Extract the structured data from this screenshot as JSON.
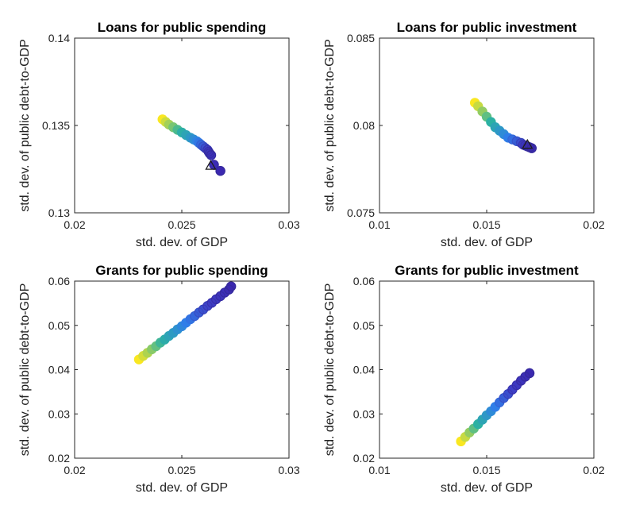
{
  "chart_data": [
    {
      "type": "scatter",
      "title": "Loans for public spending",
      "xlabel": "std. dev. of GDP",
      "ylabel": "std. dev. of public debt-to-GDP",
      "xlim": [
        0.02,
        0.03
      ],
      "ylim": [
        0.13,
        0.14
      ],
      "xticks": [
        "0.02",
        "0.025",
        "0.03"
      ],
      "yticks": [
        "0.13",
        "0.135",
        "0.14"
      ],
      "xtick_values": [
        0.02,
        0.025,
        0.03
      ],
      "ytick_values": [
        0.13,
        0.135,
        0.14
      ],
      "grid": false,
      "colormap": [
        "#f9e721",
        "#2cb1a3",
        "#2f7ee8",
        "#3e3fc6",
        "#3b28b0"
      ],
      "series": [
        {
          "marker": "circle",
          "x": [
            0.0241,
            0.02425,
            0.0244,
            0.0246,
            0.0248,
            0.025,
            0.0252,
            0.0254,
            0.02555,
            0.0257,
            0.0258,
            0.0259,
            0.026,
            0.0261,
            0.0262,
            0.02625,
            0.0263,
            0.02637,
            0.0265,
            0.0268
          ],
          "y": [
            0.13535,
            0.1352,
            0.13505,
            0.1349,
            0.13475,
            0.1346,
            0.13445,
            0.1343,
            0.1342,
            0.1341,
            0.134,
            0.1339,
            0.1338,
            0.1337,
            0.1336,
            0.1335,
            0.1334,
            0.1333,
            0.13275,
            0.1324
          ]
        },
        {
          "marker": "triangle",
          "x": [
            0.02635
          ],
          "y": [
            0.1327
          ]
        }
      ]
    },
    {
      "type": "scatter",
      "title": "Loans for public investment",
      "xlabel": "std. dev. of GDP",
      "ylabel": "std. dev. of public debt-to-GDP",
      "xlim": [
        0.01,
        0.02
      ],
      "ylim": [
        0.075,
        0.085
      ],
      "xticks": [
        "0.01",
        "0.015",
        "0.02"
      ],
      "yticks": [
        "0.075",
        "0.08",
        "0.085"
      ],
      "xtick_values": [
        0.01,
        0.015,
        0.02
      ],
      "ytick_values": [
        0.075,
        0.08,
        0.085
      ],
      "grid": false,
      "colormap": [
        "#f9e721",
        "#2cb1a3",
        "#2f7ee8",
        "#3e3fc6",
        "#3b28b0"
      ],
      "series": [
        {
          "marker": "circle",
          "x": [
            0.01445,
            0.0146,
            0.0148,
            0.015,
            0.0152,
            0.0154,
            0.0156,
            0.0158,
            0.016,
            0.0162,
            0.0164,
            0.0166,
            0.0167,
            0.0168,
            0.0169,
            0.017,
            0.0171
          ],
          "y": [
            0.0813,
            0.0811,
            0.0808,
            0.0805,
            0.0802,
            0.0799,
            0.0797,
            0.0795,
            0.0793,
            0.0792,
            0.0791,
            0.079,
            0.0789,
            0.07885,
            0.0788,
            0.07875,
            0.0787
          ]
        },
        {
          "marker": "triangle",
          "x": [
            0.0169
          ],
          "y": [
            0.0789
          ]
        }
      ]
    },
    {
      "type": "scatter",
      "title": "Grants for public spending",
      "xlabel": "std. dev. of GDP",
      "ylabel": "std. dev. of public debt-to-GDP",
      "xlim": [
        0.02,
        0.03
      ],
      "ylim": [
        0.02,
        0.06
      ],
      "xticks": [
        "0.02",
        "0.025",
        "0.03"
      ],
      "yticks": [
        "0.02",
        "0.03",
        "0.04",
        "0.05",
        "0.06"
      ],
      "xtick_values": [
        0.02,
        0.025,
        0.03
      ],
      "ytick_values": [
        0.02,
        0.03,
        0.04,
        0.05,
        0.06
      ],
      "grid": false,
      "colormap": [
        "#f9e721",
        "#2cb1a3",
        "#2f7ee8",
        "#3e3fc6",
        "#3b28b0"
      ],
      "series": [
        {
          "marker": "circle",
          "x": [
            0.023,
            0.0232,
            0.0234,
            0.0236,
            0.0238,
            0.024,
            0.0242,
            0.0244,
            0.0246,
            0.0248,
            0.025,
            0.0252,
            0.0254,
            0.0256,
            0.0258,
            0.026,
            0.0262,
            0.0264,
            0.0266,
            0.0268,
            0.027,
            0.0272,
            0.0273
          ],
          "y": [
            0.0423,
            0.0431,
            0.0438,
            0.0446,
            0.0453,
            0.0461,
            0.0468,
            0.0476,
            0.0483,
            0.0491,
            0.0498,
            0.0506,
            0.0514,
            0.0521,
            0.0529,
            0.0536,
            0.0544,
            0.0551,
            0.0559,
            0.0566,
            0.0574,
            0.0581,
            0.0588
          ]
        }
      ]
    },
    {
      "type": "scatter",
      "title": "Grants for public investment",
      "xlabel": "std. dev. of GDP",
      "ylabel": "std. dev. of public debt-to-GDP",
      "xlim": [
        0.01,
        0.02
      ],
      "ylim": [
        0.02,
        0.06
      ],
      "xticks": [
        "0.01",
        "0.015",
        "0.02"
      ],
      "yticks": [
        "0.02",
        "0.03",
        "0.04",
        "0.05",
        "0.06"
      ],
      "xtick_values": [
        0.01,
        0.015,
        0.02
      ],
      "ytick_values": [
        0.02,
        0.03,
        0.04,
        0.05,
        0.06
      ],
      "grid": false,
      "colormap": [
        "#f9e721",
        "#2cb1a3",
        "#2f7ee8",
        "#3e3fc6",
        "#3b28b0"
      ],
      "series": [
        {
          "marker": "circle",
          "x": [
            0.0138,
            0.014,
            0.0142,
            0.0144,
            0.0146,
            0.0148,
            0.015,
            0.0152,
            0.0154,
            0.0156,
            0.0158,
            0.016,
            0.0162,
            0.0164,
            0.0166,
            0.0168,
            0.017
          ],
          "y": [
            0.0238,
            0.0248,
            0.0258,
            0.0267,
            0.0277,
            0.0287,
            0.0297,
            0.0306,
            0.0316,
            0.0326,
            0.0336,
            0.0345,
            0.0355,
            0.0365,
            0.0375,
            0.0384,
            0.0392
          ]
        }
      ]
    }
  ]
}
